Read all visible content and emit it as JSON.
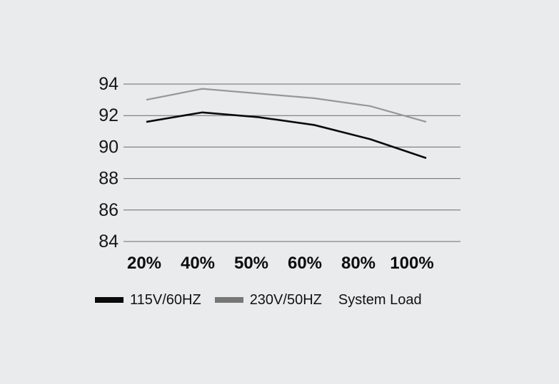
{
  "chart_data": {
    "type": "line",
    "categories": [
      "20%",
      "40%",
      "50%",
      "60%",
      "80%",
      "100%"
    ],
    "series": [
      {
        "name": "115V/60HZ",
        "values": [
          91.6,
          92.2,
          91.9,
          91.4,
          90.5,
          89.3
        ],
        "color": "#0a0a0a",
        "legend_swatch_color": "#0a0a0a",
        "stroke_width": 2.6
      },
      {
        "name": "230V/50HZ",
        "values": [
          93.0,
          93.7,
          93.4,
          93.1,
          92.6,
          91.6
        ],
        "color": "#979797",
        "legend_swatch_color": "#777777",
        "stroke_width": 2.2
      }
    ],
    "title": "",
    "xlabel": "System Load",
    "ylabel": "",
    "y_ticks": [
      94,
      92,
      90,
      88,
      86,
      84
    ],
    "ylim": [
      84,
      94
    ],
    "grid": "horizontal",
    "gridline_color": "#6a6a6a",
    "background_color": "#eaebed",
    "legend_position": "bottom"
  }
}
